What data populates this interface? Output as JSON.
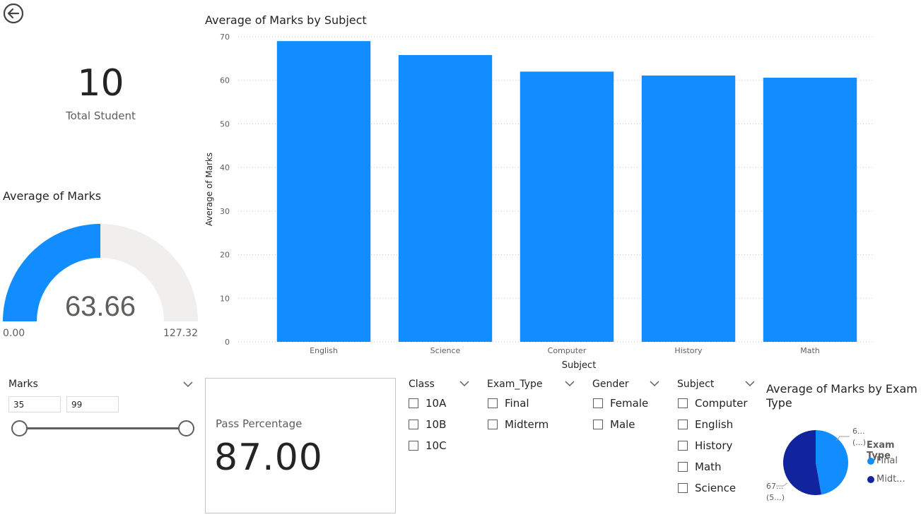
{
  "total_student": {
    "value": "10",
    "label": "Total Student"
  },
  "gauge": {
    "title": "Average of Marks",
    "value": 63.66,
    "value_text": "63.66",
    "min_text": "0.00",
    "max_text": "127.32",
    "fill_color": "#118DFF",
    "track_color": "#F0EFEE"
  },
  "chart_data": [
    {
      "type": "bar",
      "title": "Average of Marks by Subject",
      "categories": [
        "English",
        "Science",
        "Computer",
        "History",
        "Math"
      ],
      "values": [
        69.0,
        65.8,
        62.0,
        61.1,
        60.6
      ],
      "xlabel": "Subject",
      "ylabel": "Average of Marks",
      "ylim": [
        0,
        70
      ],
      "yticks": [
        "0",
        "10",
        "20",
        "30",
        "40",
        "50",
        "60",
        "70"
      ],
      "grid": true,
      "color": "#118DFF"
    },
    {
      "type": "pie",
      "title": "Average of Marks by Exam Type",
      "categories": [
        "Final",
        "Midterm"
      ],
      "values": [
        47.2,
        52.8
      ],
      "colors": [
        "#118DFF",
        "#12239E"
      ],
      "legend_title": "Exam Type",
      "legend_labels": [
        "Final",
        "Midt..."
      ],
      "data_labels": [
        [
          "6...",
          "(...)"
        ],
        [
          "67...",
          "(5...)"
        ]
      ]
    }
  ],
  "marks_slicer": {
    "title": "Marks",
    "min": "35",
    "max": "99",
    "range_start": 0.0,
    "range_end": 1.0
  },
  "pass_card": {
    "label": "Pass Percentage",
    "value": "87.00"
  },
  "slicers": {
    "class": {
      "title": "Class",
      "options": [
        "10A",
        "10B",
        "10C"
      ]
    },
    "exam_type": {
      "title": "Exam_Type",
      "options": [
        "Final",
        "Midterm"
      ]
    },
    "gender": {
      "title": "Gender",
      "options": [
        "Female",
        "Male"
      ]
    },
    "subject": {
      "title": "Subject",
      "options": [
        "Computer",
        "English",
        "History",
        "Math",
        "Science"
      ]
    }
  }
}
